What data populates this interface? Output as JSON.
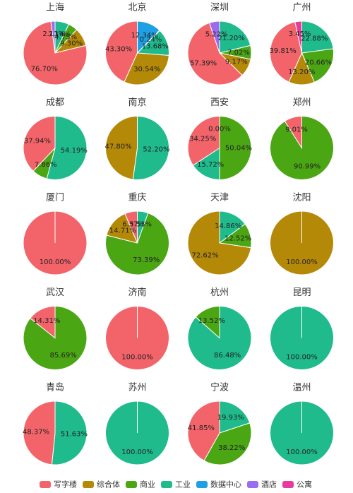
{
  "chart_data": [
    {
      "type": "pie",
      "title": "上海",
      "categories": [
        "工业",
        "商业",
        "综合体",
        "写字楼",
        "酒店"
      ],
      "values": [
        7.14,
        4.75,
        9.3,
        76.7,
        2.11
      ],
      "value_labels": [
        "7.14%",
        "4.75%",
        "9.30%",
        "76.70%",
        "2.11%"
      ]
    },
    {
      "type": "pie",
      "title": "北京",
      "categories": [
        "数据中心",
        "商业",
        "工业",
        "综合体",
        "写字楼"
      ],
      "values": [
        12.34,
        0.24,
        13.68,
        30.54,
        43.3
      ],
      "value_labels": [
        "12.34%",
        "0.24%",
        "13.68%",
        "30.54%",
        "43.30%"
      ]
    },
    {
      "type": "pie",
      "title": "深圳",
      "categories": [
        "工业",
        "商业",
        "综合体",
        "写字楼",
        "酒店"
      ],
      "values": [
        21.2,
        7.02,
        9.17,
        57.39,
        5.22
      ],
      "value_labels": [
        "21.20%",
        "7.02%",
        "9.17%",
        "57.39%",
        "5.22%"
      ]
    },
    {
      "type": "pie",
      "title": "广州",
      "categories": [
        "工业",
        "商业",
        "综合体",
        "写字楼",
        "公寓"
      ],
      "values": [
        22.88,
        20.66,
        13.2,
        39.81,
        3.45
      ],
      "value_labels": [
        "22.88%",
        "20.66%",
        "13.20%",
        "39.81%",
        "3.45%"
      ]
    },
    {
      "type": "pie",
      "title": "成都",
      "categories": [
        "工业",
        "商业",
        "写字楼"
      ],
      "values": [
        54.19,
        7.86,
        37.94
      ],
      "value_labels": [
        "54.19%",
        "7.86%",
        "37.94%"
      ]
    },
    {
      "type": "pie",
      "title": "南京",
      "categories": [
        "工业",
        "综合体"
      ],
      "values": [
        52.2,
        47.8
      ],
      "value_labels": [
        "52.20%",
        "47.80%"
      ]
    },
    {
      "type": "pie",
      "title": "西安",
      "categories": [
        "数据中心",
        "商业",
        "工业",
        "写字楼"
      ],
      "values": [
        0.0,
        50.04,
        15.72,
        34.25
      ],
      "value_labels": [
        "0.00%",
        "50.04%",
        "15.72%",
        "34.25%"
      ]
    },
    {
      "type": "pie",
      "title": "郑州",
      "categories": [
        "商业",
        "写字楼"
      ],
      "values": [
        90.99,
        9.01
      ],
      "value_labels": [
        "90.99%",
        "9.01%"
      ]
    },
    {
      "type": "pie",
      "title": "厦门",
      "categories": [
        "写字楼"
      ],
      "values": [
        100.0
      ],
      "value_labels": [
        "100.00%"
      ]
    },
    {
      "type": "pie",
      "title": "重庆",
      "categories": [
        "工业",
        "商业",
        "综合体",
        "写字楼"
      ],
      "values": [
        5.53,
        73.39,
        14.71,
        6.37
      ],
      "value_labels": [
        "5.53%",
        "73.39%",
        "14.71%",
        "6.37%"
      ]
    },
    {
      "type": "pie",
      "title": "天津",
      "categories": [
        "工业",
        "商业",
        "综合体"
      ],
      "values": [
        14.86,
        12.52,
        72.62
      ],
      "value_labels": [
        "14.86%",
        "12.52%",
        "72.62%"
      ]
    },
    {
      "type": "pie",
      "title": "沈阳",
      "categories": [
        "综合体"
      ],
      "values": [
        100.0
      ],
      "value_labels": [
        "100.00%"
      ]
    },
    {
      "type": "pie",
      "title": "武汉",
      "categories": [
        "商业",
        "写字楼"
      ],
      "values": [
        85.69,
        14.31
      ],
      "value_labels": [
        "85.69%",
        "14.31%"
      ]
    },
    {
      "type": "pie",
      "title": "济南",
      "categories": [
        "写字楼"
      ],
      "values": [
        100.0
      ],
      "value_labels": [
        "100.00%"
      ]
    },
    {
      "type": "pie",
      "title": "杭州",
      "categories": [
        "工业",
        "商业"
      ],
      "values": [
        86.48,
        13.52
      ],
      "value_labels": [
        "86.48%",
        "13.52%"
      ]
    },
    {
      "type": "pie",
      "title": "昆明",
      "categories": [
        "工业"
      ],
      "values": [
        100.0
      ],
      "value_labels": [
        "100.00%"
      ]
    },
    {
      "type": "pie",
      "title": "青岛",
      "categories": [
        "工业",
        "写字楼"
      ],
      "values": [
        51.63,
        48.37
      ],
      "value_labels": [
        "51.63%",
        "48.37%"
      ]
    },
    {
      "type": "pie",
      "title": "苏州",
      "categories": [
        "工业"
      ],
      "values": [
        100.0
      ],
      "value_labels": [
        "100.00%"
      ]
    },
    {
      "type": "pie",
      "title": "宁波",
      "categories": [
        "工业",
        "商业",
        "写字楼"
      ],
      "values": [
        19.93,
        38.22,
        41.85
      ],
      "value_labels": [
        "19.93%",
        "38.22%",
        "41.85%"
      ]
    },
    {
      "type": "pie",
      "title": "温州",
      "categories": [
        "工业"
      ],
      "values": [
        100.0
      ],
      "value_labels": [
        "100.00%"
      ]
    }
  ],
  "legend": [
    {
      "name": "写字楼",
      "color": "#f2646a"
    },
    {
      "name": "综合体",
      "color": "#b58908"
    },
    {
      "name": "商业",
      "color": "#4ba614"
    },
    {
      "name": "工业",
      "color": "#1fbb8c"
    },
    {
      "name": "数据中心",
      "color": "#1ea0e4"
    },
    {
      "name": "酒店",
      "color": "#9a6cf0"
    },
    {
      "name": "公寓",
      "color": "#e63c9e"
    }
  ]
}
